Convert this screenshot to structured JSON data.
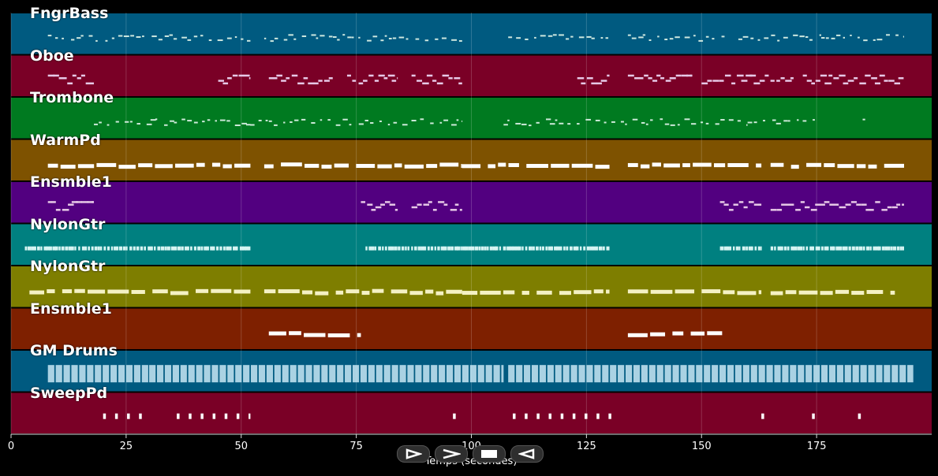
{
  "axis": {
    "title": "Temps (secondes)",
    "xlim": [
      0,
      200
    ],
    "ticks": [
      0,
      25,
      50,
      75,
      100,
      125,
      150,
      175
    ],
    "tick_labels": [
      "0",
      "25",
      "50",
      "75",
      "100",
      "125",
      "150",
      "175"
    ]
  },
  "controls": [
    {
      "name": "play-button",
      "icon": "play-icon"
    },
    {
      "name": "fast-forward-button",
      "icon": "fast-forward-icon"
    },
    {
      "name": "stop-button",
      "icon": "stop-icon"
    },
    {
      "name": "rewind-button",
      "icon": "rewind-icon"
    }
  ],
  "tracks": [
    {
      "name": "FngrBass",
      "color": "#005a80"
    },
    {
      "name": "Oboe",
      "color": "#7a0026"
    },
    {
      "name": "Trombone",
      "color": "#007a20"
    },
    {
      "name": "WarmPd",
      "color": "#7e5200"
    },
    {
      "name": "Ensmble1",
      "color": "#520080"
    },
    {
      "name": "NylonGtr",
      "color": "#008080"
    },
    {
      "name": "NylonGtr",
      "color": "#7e7e00"
    },
    {
      "name": "Ensmble1",
      "color": "#7e2000"
    },
    {
      "name": "GM Drums",
      "color": "#005a80"
    },
    {
      "name": "SweepPd",
      "color": "#7a0026"
    }
  ],
  "chart_data": {
    "type": "scatter",
    "xlabel": "Temps (secondes)",
    "xlim": [
      0,
      200
    ],
    "series": [
      {
        "name": "FngrBass",
        "segments": [
          [
            8,
            52
          ],
          [
            55,
            98
          ],
          [
            108,
            130
          ],
          [
            134,
            155
          ],
          [
            158,
            176
          ],
          [
            176,
            194
          ]
        ],
        "style": "sparse-small"
      },
      {
        "name": "Oboe",
        "segments": [
          [
            8,
            18
          ],
          [
            45,
            52
          ],
          [
            56,
            70
          ],
          [
            73,
            84
          ],
          [
            87,
            98
          ],
          [
            123,
            130
          ],
          [
            134,
            148
          ],
          [
            150,
            170
          ],
          [
            172,
            194
          ]
        ],
        "style": "clusters"
      },
      {
        "name": "Trombone",
        "segments": [
          [
            18,
            56
          ],
          [
            56,
            98
          ],
          [
            107,
            160
          ],
          [
            160,
            175
          ],
          [
            185,
            186
          ]
        ],
        "style": "sparse-small"
      },
      {
        "name": "WarmPd",
        "segments": [
          [
            8,
            52
          ],
          [
            55,
            98
          ],
          [
            98,
            130
          ],
          [
            134,
            163
          ],
          [
            165,
            194
          ]
        ],
        "style": "bars"
      },
      {
        "name": "Ensmble1",
        "segments": [
          [
            8,
            18
          ],
          [
            76,
            84
          ],
          [
            87,
            98
          ],
          [
            154,
            163
          ],
          [
            165,
            194
          ]
        ],
        "style": "clusters"
      },
      {
        "name": "NylonGtr",
        "segments": [
          [
            3,
            52
          ],
          [
            77,
            98
          ],
          [
            98,
            130
          ],
          [
            154,
            163
          ],
          [
            165,
            194
          ]
        ],
        "style": "dense-small"
      },
      {
        "name": "NylonGtr",
        "segments": [
          [
            4,
            52
          ],
          [
            55,
            98
          ],
          [
            98,
            130
          ],
          [
            134,
            163
          ],
          [
            165,
            192
          ]
        ],
        "style": "bars"
      },
      {
        "name": "Ensmble1",
        "segments": [
          [
            56,
            76
          ],
          [
            134,
            155
          ]
        ],
        "style": "bars"
      },
      {
        "name": "GM Drums",
        "segments": [
          [
            8,
            30
          ],
          [
            30,
            107
          ],
          [
            108,
            196
          ]
        ],
        "style": "drums"
      },
      {
        "name": "SweepPd",
        "segments": [
          [
            20,
            30
          ],
          [
            36,
            52
          ],
          [
            96,
            98
          ],
          [
            109,
            131
          ],
          [
            163,
            164
          ],
          [
            174,
            175
          ],
          [
            184,
            185
          ]
        ],
        "style": "sparse-marks"
      }
    ]
  }
}
